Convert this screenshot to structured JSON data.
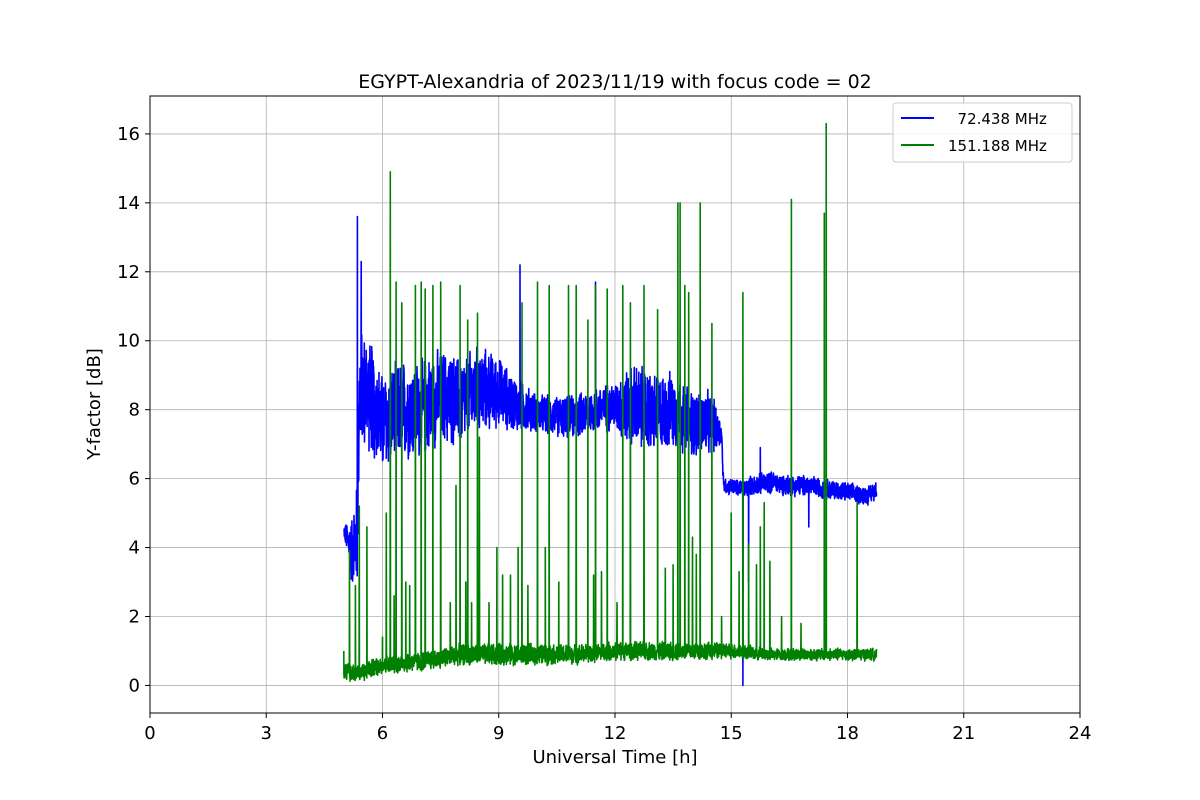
{
  "chart_data": {
    "type": "line",
    "title": "EGYPT-Alexandria of 2023/11/19 with focus code = 02",
    "xlabel": "Universal Time [h]",
    "ylabel": "Y-factor [dB]",
    "xlim": [
      0,
      24
    ],
    "ylim": [
      -0.8,
      17.1
    ],
    "xticks": [
      0,
      3,
      6,
      9,
      12,
      15,
      18,
      21,
      24
    ],
    "yticks": [
      0,
      2,
      4,
      6,
      8,
      10,
      12,
      14,
      16
    ],
    "grid": true,
    "legend_position": "top-right",
    "series": [
      {
        "name": "  72.438 MHz",
        "color": "#0000ff",
        "baseline": [
          [
            5.0,
            4.5
          ],
          [
            5.2,
            3.9
          ],
          [
            5.35,
            4.4
          ],
          [
            5.4,
            8.5
          ],
          [
            5.6,
            8.6
          ],
          [
            6.0,
            7.6
          ],
          [
            6.5,
            8.0
          ],
          [
            7.0,
            8.0
          ],
          [
            7.5,
            8.4
          ],
          [
            8.0,
            8.2
          ],
          [
            8.5,
            8.6
          ],
          [
            9.0,
            8.5
          ],
          [
            9.5,
            8.1
          ],
          [
            10.0,
            7.9
          ],
          [
            10.5,
            7.8
          ],
          [
            11.0,
            7.8
          ],
          [
            11.5,
            8.0
          ],
          [
            12.0,
            8.1
          ],
          [
            12.5,
            8.1
          ],
          [
            13.0,
            7.9
          ],
          [
            13.5,
            8.0
          ],
          [
            14.0,
            7.6
          ],
          [
            14.5,
            7.6
          ],
          [
            14.75,
            7.3
          ],
          [
            14.8,
            5.8
          ],
          [
            15.3,
            5.7
          ],
          [
            15.5,
            5.8
          ],
          [
            16.0,
            5.9
          ],
          [
            16.5,
            5.8
          ],
          [
            17.0,
            5.8
          ],
          [
            17.5,
            5.7
          ],
          [
            18.0,
            5.6
          ],
          [
            18.5,
            5.5
          ],
          [
            18.75,
            5.7
          ]
        ],
        "noise": [
          [
            5.0,
            0.15
          ],
          [
            5.4,
            2.0
          ],
          [
            6.0,
            1.6
          ],
          [
            7.0,
            1.6
          ],
          [
            8.5,
            1.4
          ],
          [
            10.0,
            0.6
          ],
          [
            11.0,
            0.7
          ],
          [
            12.0,
            0.8
          ],
          [
            12.5,
            1.4
          ],
          [
            14.5,
            1.0
          ],
          [
            14.8,
            0.25
          ],
          [
            16.0,
            0.35
          ],
          [
            18.75,
            0.3
          ]
        ],
        "peaks": [
          [
            5.35,
            13.6
          ],
          [
            5.45,
            12.3
          ],
          [
            9.55,
            12.2
          ],
          [
            11.5,
            11.7
          ],
          [
            15.75,
            6.9
          ],
          [
            15.45,
            3.0
          ],
          [
            15.3,
            0.0
          ],
          [
            17.0,
            4.6
          ]
        ]
      },
      {
        "name": "151.188 MHz",
        "color": "#008000",
        "baseline": [
          [
            5.0,
            0.4
          ],
          [
            5.5,
            0.4
          ],
          [
            6.0,
            0.6
          ],
          [
            7.0,
            0.7
          ],
          [
            8.0,
            0.9
          ],
          [
            9.0,
            0.9
          ],
          [
            10.0,
            0.9
          ],
          [
            11.0,
            0.9
          ],
          [
            12.0,
            1.0
          ],
          [
            13.0,
            1.0
          ],
          [
            14.0,
            1.0
          ],
          [
            15.0,
            1.0
          ],
          [
            16.0,
            0.9
          ],
          [
            17.0,
            0.9
          ],
          [
            18.0,
            0.9
          ],
          [
            18.75,
            0.9
          ]
        ],
        "noise": [
          [
            5.0,
            0.3
          ],
          [
            6.0,
            0.3
          ],
          [
            9.0,
            0.35
          ],
          [
            12.0,
            0.3
          ],
          [
            14.0,
            0.3
          ],
          [
            16.0,
            0.2
          ],
          [
            18.75,
            0.2
          ]
        ],
        "spikes": [
          [
            5.0,
            1.0
          ],
          [
            5.15,
            3.9
          ],
          [
            5.3,
            2.9
          ],
          [
            5.4,
            5.2
          ],
          [
            5.6,
            4.6
          ],
          [
            6.0,
            1.4
          ],
          [
            6.1,
            5.0
          ],
          [
            6.2,
            14.9
          ],
          [
            6.3,
            2.6
          ],
          [
            6.35,
            11.7
          ],
          [
            6.5,
            11.1
          ],
          [
            6.6,
            3.0
          ],
          [
            6.7,
            2.9
          ],
          [
            6.85,
            11.6
          ],
          [
            7.0,
            11.7
          ],
          [
            7.1,
            11.5
          ],
          [
            7.3,
            11.6
          ],
          [
            7.5,
            11.7
          ],
          [
            7.75,
            2.4
          ],
          [
            7.9,
            5.8
          ],
          [
            8.0,
            11.6
          ],
          [
            8.15,
            3.0
          ],
          [
            8.2,
            10.6
          ],
          [
            8.3,
            2.4
          ],
          [
            8.45,
            10.8
          ],
          [
            8.5,
            7.2
          ],
          [
            8.75,
            2.4
          ],
          [
            8.95,
            4.0
          ],
          [
            9.1,
            3.2
          ],
          [
            9.3,
            3.2
          ],
          [
            9.5,
            4.0
          ],
          [
            9.6,
            11.1
          ],
          [
            9.75,
            2.9
          ],
          [
            10.0,
            11.7
          ],
          [
            10.2,
            4.0
          ],
          [
            10.3,
            11.6
          ],
          [
            10.55,
            3.0
          ],
          [
            10.8,
            11.6
          ],
          [
            11.0,
            11.6
          ],
          [
            11.3,
            10.6
          ],
          [
            11.45,
            3.2
          ],
          [
            11.5,
            11.6
          ],
          [
            11.65,
            3.3
          ],
          [
            11.8,
            11.5
          ],
          [
            12.05,
            2.4
          ],
          [
            12.2,
            11.6
          ],
          [
            12.4,
            11.1
          ],
          [
            12.75,
            11.6
          ],
          [
            13.1,
            10.9
          ],
          [
            13.3,
            3.4
          ],
          [
            13.5,
            3.5
          ],
          [
            13.62,
            14.0
          ],
          [
            13.68,
            14.0
          ],
          [
            13.8,
            11.6
          ],
          [
            13.9,
            11.4
          ],
          [
            14.0,
            4.3
          ],
          [
            14.1,
            3.8
          ],
          [
            14.2,
            14.0
          ],
          [
            14.5,
            10.5
          ],
          [
            14.75,
            2.0
          ],
          [
            15.0,
            5.0
          ],
          [
            15.2,
            3.3
          ],
          [
            15.3,
            11.4
          ],
          [
            15.45,
            4.1
          ],
          [
            15.65,
            3.5
          ],
          [
            15.75,
            4.6
          ],
          [
            15.85,
            5.3
          ],
          [
            16.0,
            3.6
          ],
          [
            16.3,
            2.0
          ],
          [
            16.55,
            14.1
          ],
          [
            16.8,
            1.8
          ],
          [
            17.4,
            13.7
          ],
          [
            17.45,
            16.3
          ],
          [
            18.25,
            5.3
          ]
        ]
      }
    ]
  }
}
